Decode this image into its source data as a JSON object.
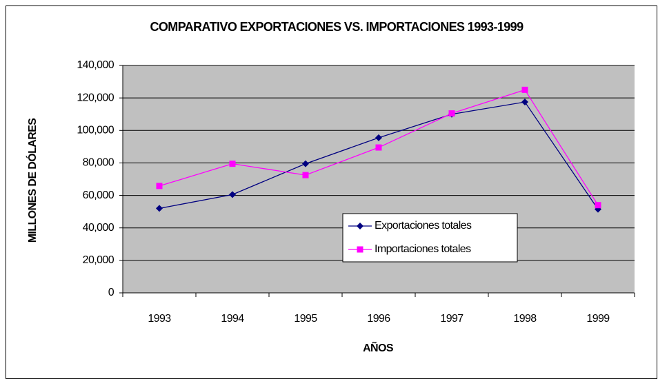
{
  "chart_data": {
    "type": "line",
    "title": "COMPARATIVO EXPORTACIONES VS. IMPORTACIONES 1993-1999",
    "x_label": "AÑOS",
    "y_label": "MILLONES DE DÓLARES",
    "categories": [
      "1993",
      "1994",
      "1995",
      "1996",
      "1997",
      "1998",
      "1999"
    ],
    "series": [
      {
        "name": "Exportaciones totales",
        "color": "#000080",
        "marker": "diamond",
        "values": [
          52000,
          60500,
          79500,
          95500,
          110000,
          117500,
          51500
        ]
      },
      {
        "name": "Importaciones totales",
        "color": "#ff00ff",
        "marker": "square",
        "values": [
          65800,
          79500,
          72500,
          89500,
          110500,
          125000,
          54000
        ]
      }
    ],
    "ylim": [
      0,
      140000
    ],
    "yticks": [
      0,
      {
        "value": 20000,
        "label": "20,000"
      },
      {
        "value": 40000,
        "label": "40,000"
      },
      {
        "value": 60000,
        "label": "60,000"
      },
      {
        "value": 80000,
        "label": "80,000"
      },
      {
        "value": 100000,
        "label": "100,000"
      },
      {
        "value": 120000,
        "label": "120,000"
      },
      {
        "value": 140000,
        "label": "140,000"
      }
    ],
    "grid": true,
    "plot_background": "#c0c0c0",
    "legend": "lower-right"
  }
}
